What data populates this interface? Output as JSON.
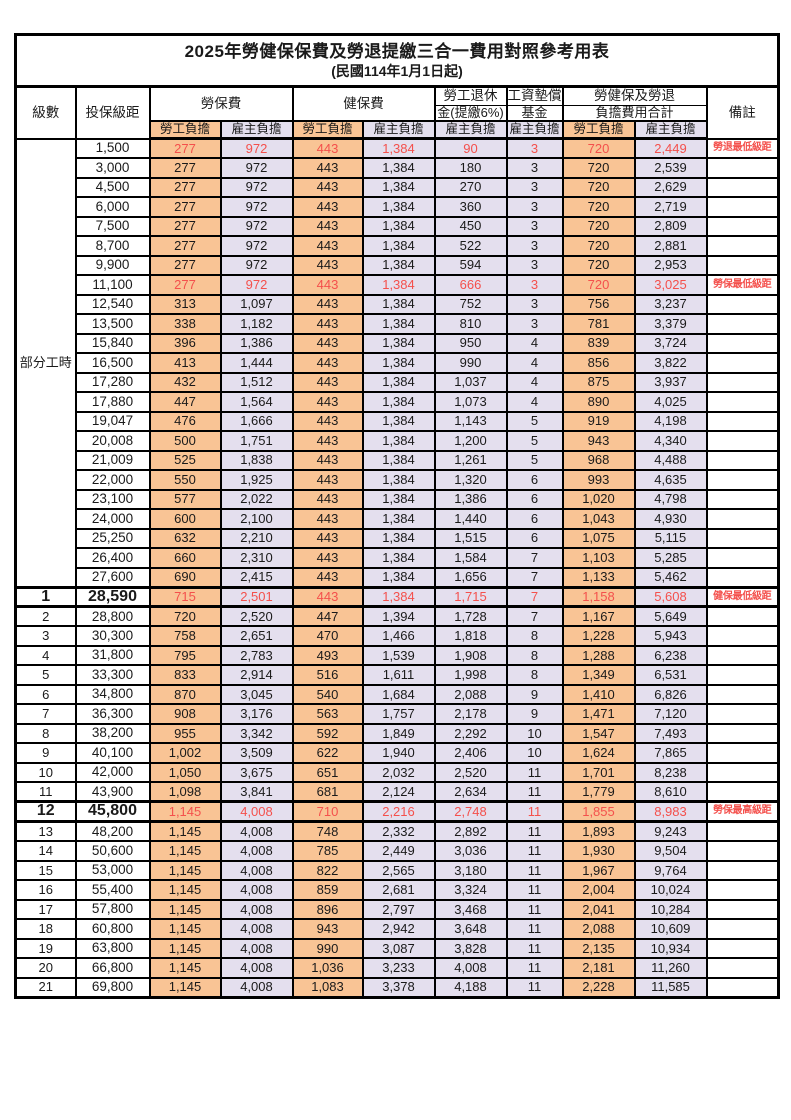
{
  "title": "2025年勞健保保費及勞退提繳三合一費用對照參考用表",
  "subtitle": "(民國114年1月1日起)",
  "headers": {
    "level": "級數",
    "bracket": "投保級距",
    "labor": "勞保費",
    "health": "健保費",
    "pension_line1": "勞工退休",
    "pension_line2": "金(提繳6%)",
    "wage_line1": "工資墊償",
    "wage_line2": "基金",
    "total_line1": "勞健保及勞退",
    "total_line2": "負擔費用合計",
    "note": "備註",
    "employee": "勞工負擔",
    "employer": "雇主負擔"
  },
  "colors": {
    "employee_bg": "#F9C495",
    "employer_bg": "#E4DFEE",
    "highlight_red": "#F4504C",
    "border": "#000000"
  },
  "part_time_label": "部分工時",
  "part_time_span": 23,
  "rows": [
    {
      "level": "",
      "bracket": "1,500",
      "values": [
        "277",
        "972",
        "443",
        "1,384",
        "90",
        "3",
        "720",
        "2,449"
      ],
      "note": "勞退最低級距",
      "red": true,
      "em": false
    },
    {
      "level": "",
      "bracket": "3,000",
      "values": [
        "277",
        "972",
        "443",
        "1,384",
        "180",
        "3",
        "720",
        "2,539"
      ],
      "note": "",
      "red": false,
      "em": false
    },
    {
      "level": "",
      "bracket": "4,500",
      "values": [
        "277",
        "972",
        "443",
        "1,384",
        "270",
        "3",
        "720",
        "2,629"
      ],
      "note": "",
      "red": false,
      "em": false
    },
    {
      "level": "",
      "bracket": "6,000",
      "values": [
        "277",
        "972",
        "443",
        "1,384",
        "360",
        "3",
        "720",
        "2,719"
      ],
      "note": "",
      "red": false,
      "em": false
    },
    {
      "level": "",
      "bracket": "7,500",
      "values": [
        "277",
        "972",
        "443",
        "1,384",
        "450",
        "3",
        "720",
        "2,809"
      ],
      "note": "",
      "red": false,
      "em": false
    },
    {
      "level": "",
      "bracket": "8,700",
      "values": [
        "277",
        "972",
        "443",
        "1,384",
        "522",
        "3",
        "720",
        "2,881"
      ],
      "note": "",
      "red": false,
      "em": false
    },
    {
      "level": "",
      "bracket": "9,900",
      "values": [
        "277",
        "972",
        "443",
        "1,384",
        "594",
        "3",
        "720",
        "2,953"
      ],
      "note": "",
      "red": false,
      "em": false
    },
    {
      "level": "",
      "bracket": "11,100",
      "values": [
        "277",
        "972",
        "443",
        "1,384",
        "666",
        "3",
        "720",
        "3,025"
      ],
      "note": "勞保最低級距",
      "red": true,
      "em": false
    },
    {
      "level": "",
      "bracket": "12,540",
      "values": [
        "313",
        "1,097",
        "443",
        "1,384",
        "752",
        "3",
        "756",
        "3,237"
      ],
      "note": "",
      "red": false,
      "em": false
    },
    {
      "level": "",
      "bracket": "13,500",
      "values": [
        "338",
        "1,182",
        "443",
        "1,384",
        "810",
        "3",
        "781",
        "3,379"
      ],
      "note": "",
      "red": false,
      "em": false
    },
    {
      "level": "",
      "bracket": "15,840",
      "values": [
        "396",
        "1,386",
        "443",
        "1,384",
        "950",
        "4",
        "839",
        "3,724"
      ],
      "note": "",
      "red": false,
      "em": false
    },
    {
      "level": "",
      "bracket": "16,500",
      "values": [
        "413",
        "1,444",
        "443",
        "1,384",
        "990",
        "4",
        "856",
        "3,822"
      ],
      "note": "",
      "red": false,
      "em": false
    },
    {
      "level": "",
      "bracket": "17,280",
      "values": [
        "432",
        "1,512",
        "443",
        "1,384",
        "1,037",
        "4",
        "875",
        "3,937"
      ],
      "note": "",
      "red": false,
      "em": false
    },
    {
      "level": "",
      "bracket": "17,880",
      "values": [
        "447",
        "1,564",
        "443",
        "1,384",
        "1,073",
        "4",
        "890",
        "4,025"
      ],
      "note": "",
      "red": false,
      "em": false
    },
    {
      "level": "",
      "bracket": "19,047",
      "values": [
        "476",
        "1,666",
        "443",
        "1,384",
        "1,143",
        "5",
        "919",
        "4,198"
      ],
      "note": "",
      "red": false,
      "em": false
    },
    {
      "level": "",
      "bracket": "20,008",
      "values": [
        "500",
        "1,751",
        "443",
        "1,384",
        "1,200",
        "5",
        "943",
        "4,340"
      ],
      "note": "",
      "red": false,
      "em": false
    },
    {
      "level": "",
      "bracket": "21,009",
      "values": [
        "525",
        "1,838",
        "443",
        "1,384",
        "1,261",
        "5",
        "968",
        "4,488"
      ],
      "note": "",
      "red": false,
      "em": false
    },
    {
      "level": "",
      "bracket": "22,000",
      "values": [
        "550",
        "1,925",
        "443",
        "1,384",
        "1,320",
        "6",
        "993",
        "4,635"
      ],
      "note": "",
      "red": false,
      "em": false
    },
    {
      "level": "",
      "bracket": "23,100",
      "values": [
        "577",
        "2,022",
        "443",
        "1,384",
        "1,386",
        "6",
        "1,020",
        "4,798"
      ],
      "note": "",
      "red": false,
      "em": false
    },
    {
      "level": "",
      "bracket": "24,000",
      "values": [
        "600",
        "2,100",
        "443",
        "1,384",
        "1,440",
        "6",
        "1,043",
        "4,930"
      ],
      "note": "",
      "red": false,
      "em": false
    },
    {
      "level": "",
      "bracket": "25,250",
      "values": [
        "632",
        "2,210",
        "443",
        "1,384",
        "1,515",
        "6",
        "1,075",
        "5,115"
      ],
      "note": "",
      "red": false,
      "em": false
    },
    {
      "level": "",
      "bracket": "26,400",
      "values": [
        "660",
        "2,310",
        "443",
        "1,384",
        "1,584",
        "7",
        "1,103",
        "5,285"
      ],
      "note": "",
      "red": false,
      "em": false
    },
    {
      "level": "",
      "bracket": "27,600",
      "values": [
        "690",
        "2,415",
        "443",
        "1,384",
        "1,656",
        "7",
        "1,133",
        "5,462"
      ],
      "note": "",
      "red": false,
      "em": false
    },
    {
      "level": "1",
      "bracket": "28,590",
      "values": [
        "715",
        "2,501",
        "443",
        "1,384",
        "1,715",
        "7",
        "1,158",
        "5,608"
      ],
      "note": "健保最低級距",
      "red": true,
      "em": true
    },
    {
      "level": "2",
      "bracket": "28,800",
      "values": [
        "720",
        "2,520",
        "447",
        "1,394",
        "1,728",
        "7",
        "1,167",
        "5,649"
      ],
      "note": "",
      "red": false,
      "em": false
    },
    {
      "level": "3",
      "bracket": "30,300",
      "values": [
        "758",
        "2,651",
        "470",
        "1,466",
        "1,818",
        "8",
        "1,228",
        "5,943"
      ],
      "note": "",
      "red": false,
      "em": false
    },
    {
      "level": "4",
      "bracket": "31,800",
      "values": [
        "795",
        "2,783",
        "493",
        "1,539",
        "1,908",
        "8",
        "1,288",
        "6,238"
      ],
      "note": "",
      "red": false,
      "em": false
    },
    {
      "level": "5",
      "bracket": "33,300",
      "values": [
        "833",
        "2,914",
        "516",
        "1,611",
        "1,998",
        "8",
        "1,349",
        "6,531"
      ],
      "note": "",
      "red": false,
      "em": false
    },
    {
      "level": "6",
      "bracket": "34,800",
      "values": [
        "870",
        "3,045",
        "540",
        "1,684",
        "2,088",
        "9",
        "1,410",
        "6,826"
      ],
      "note": "",
      "red": false,
      "em": false
    },
    {
      "level": "7",
      "bracket": "36,300",
      "values": [
        "908",
        "3,176",
        "563",
        "1,757",
        "2,178",
        "9",
        "1,471",
        "7,120"
      ],
      "note": "",
      "red": false,
      "em": false
    },
    {
      "level": "8",
      "bracket": "38,200",
      "values": [
        "955",
        "3,342",
        "592",
        "1,849",
        "2,292",
        "10",
        "1,547",
        "7,493"
      ],
      "note": "",
      "red": false,
      "em": false
    },
    {
      "level": "9",
      "bracket": "40,100",
      "values": [
        "1,002",
        "3,509",
        "622",
        "1,940",
        "2,406",
        "10",
        "1,624",
        "7,865"
      ],
      "note": "",
      "red": false,
      "em": false
    },
    {
      "level": "10",
      "bracket": "42,000",
      "values": [
        "1,050",
        "3,675",
        "651",
        "2,032",
        "2,520",
        "11",
        "1,701",
        "8,238"
      ],
      "note": "",
      "red": false,
      "em": false
    },
    {
      "level": "11",
      "bracket": "43,900",
      "values": [
        "1,098",
        "3,841",
        "681",
        "2,124",
        "2,634",
        "11",
        "1,779",
        "8,610"
      ],
      "note": "",
      "red": false,
      "em": false
    },
    {
      "level": "12",
      "bracket": "45,800",
      "values": [
        "1,145",
        "4,008",
        "710",
        "2,216",
        "2,748",
        "11",
        "1,855",
        "8,983"
      ],
      "note": "勞保最高級距",
      "red": true,
      "em": true
    },
    {
      "level": "13",
      "bracket": "48,200",
      "values": [
        "1,145",
        "4,008",
        "748",
        "2,332",
        "2,892",
        "11",
        "1,893",
        "9,243"
      ],
      "note": "",
      "red": false,
      "em": false
    },
    {
      "level": "14",
      "bracket": "50,600",
      "values": [
        "1,145",
        "4,008",
        "785",
        "2,449",
        "3,036",
        "11",
        "1,930",
        "9,504"
      ],
      "note": "",
      "red": false,
      "em": false
    },
    {
      "level": "15",
      "bracket": "53,000",
      "values": [
        "1,145",
        "4,008",
        "822",
        "2,565",
        "3,180",
        "11",
        "1,967",
        "9,764"
      ],
      "note": "",
      "red": false,
      "em": false
    },
    {
      "level": "16",
      "bracket": "55,400",
      "values": [
        "1,145",
        "4,008",
        "859",
        "2,681",
        "3,324",
        "11",
        "2,004",
        "10,024"
      ],
      "note": "",
      "red": false,
      "em": false
    },
    {
      "level": "17",
      "bracket": "57,800",
      "values": [
        "1,145",
        "4,008",
        "896",
        "2,797",
        "3,468",
        "11",
        "2,041",
        "10,284"
      ],
      "note": "",
      "red": false,
      "em": false
    },
    {
      "level": "18",
      "bracket": "60,800",
      "values": [
        "1,145",
        "4,008",
        "943",
        "2,942",
        "3,648",
        "11",
        "2,088",
        "10,609"
      ],
      "note": "",
      "red": false,
      "em": false
    },
    {
      "level": "19",
      "bracket": "63,800",
      "values": [
        "1,145",
        "4,008",
        "990",
        "3,087",
        "3,828",
        "11",
        "2,135",
        "10,934"
      ],
      "note": "",
      "red": false,
      "em": false
    },
    {
      "level": "20",
      "bracket": "66,800",
      "values": [
        "1,145",
        "4,008",
        "1,036",
        "3,233",
        "4,008",
        "11",
        "2,181",
        "11,260"
      ],
      "note": "",
      "red": false,
      "em": false
    },
    {
      "level": "21",
      "bracket": "69,800",
      "values": [
        "1,145",
        "4,008",
        "1,083",
        "3,378",
        "4,188",
        "11",
        "2,228",
        "11,585"
      ],
      "note": "",
      "red": false,
      "em": false
    }
  ],
  "value_column_keys": [
    "labor-employee",
    "labor-employer",
    "health-employee",
    "health-employer",
    "pension-employer",
    "wage-fund-employer",
    "total-employee",
    "total-employer"
  ]
}
